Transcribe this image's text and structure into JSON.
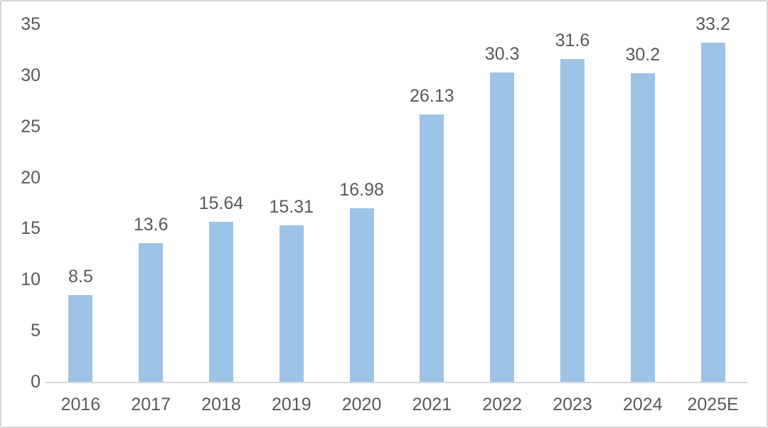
{
  "chart_data": {
    "type": "bar",
    "categories": [
      "2016",
      "2017",
      "2018",
      "2019",
      "2020",
      "2021",
      "2022",
      "2023",
      "2024",
      "2025E"
    ],
    "values": [
      8.5,
      13.6,
      15.64,
      15.31,
      16.98,
      26.13,
      30.3,
      31.6,
      30.2,
      33.2
    ],
    "data_labels": [
      "8.5",
      "13.6",
      "15.64",
      "15.31",
      "16.98",
      "26.13",
      "30.3",
      "31.6",
      "30.2",
      "33.2"
    ],
    "title": "",
    "xlabel": "",
    "ylabel": "",
    "ylim": [
      0,
      35
    ],
    "yticks": [
      0,
      5,
      10,
      15,
      20,
      25,
      30,
      35
    ],
    "grid": false,
    "legend": false,
    "colors": {
      "bar": "#9dc3e6",
      "text": "#595959",
      "axis_line": "#d9d9d9",
      "frame_border": "#d6d6d6",
      "background": "#ffffff"
    }
  }
}
